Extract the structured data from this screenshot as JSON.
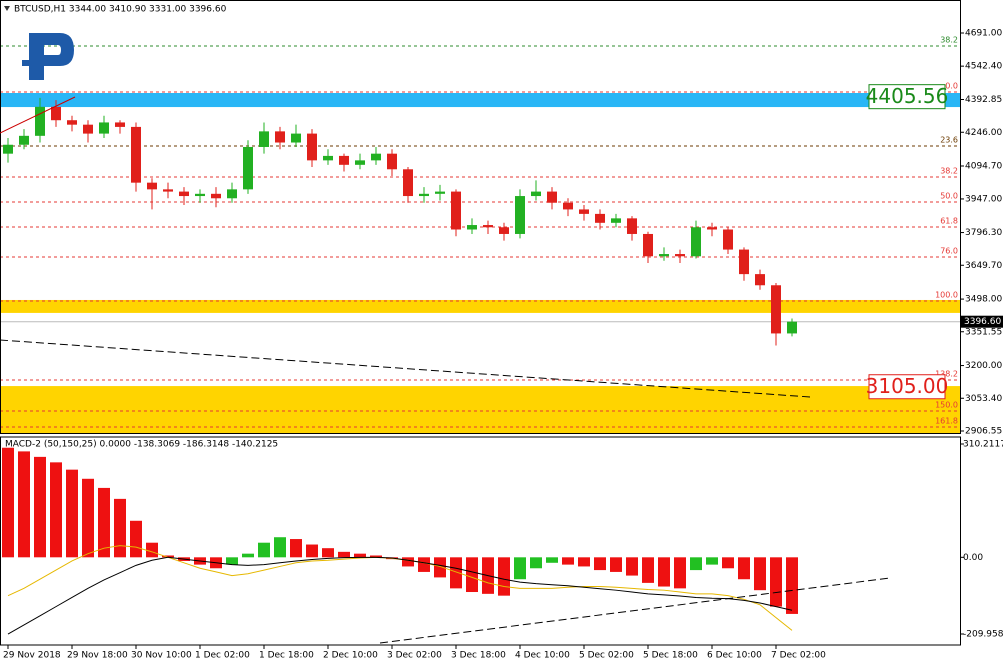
{
  "chart_data": [
    {
      "type": "candlestick",
      "title": "BTCUSD,H1  3344.00 3410.90 3331.00 3396.60",
      "categories": [
        "29 Nov 2018",
        null,
        null,
        null,
        "29 Nov 18:00",
        null,
        null,
        null,
        "30 Nov 10:00",
        null,
        null,
        null,
        "1 Dec 02:00",
        null,
        null,
        null,
        "1 Dec 18:00",
        null,
        null,
        null,
        "2 Dec 10:00",
        null,
        null,
        null,
        "3 Dec 02:00",
        null,
        null,
        null,
        "3 Dec 18:00",
        null,
        null,
        null,
        "4 Dec 10:00",
        null,
        null,
        null,
        "5 Dec 02:00",
        null,
        null,
        null,
        "5 Dec 18:00",
        null,
        null,
        null,
        "6 Dec 10:00",
        null,
        null,
        null,
        "7 Dec 02:00",
        null
      ],
      "open": [
        4150,
        4190,
        4230,
        4360,
        4300,
        4280,
        4240,
        4290,
        4270,
        4020,
        3990,
        3980,
        3960,
        3970,
        3950,
        3990,
        4180,
        4250,
        4200,
        4240,
        4120,
        4140,
        4100,
        4120,
        4150,
        4080,
        3960,
        3970,
        3980,
        3810,
        3830,
        3820,
        3790,
        3960,
        3980,
        3930,
        3900,
        3880,
        3840,
        3860,
        3790,
        3690,
        3700,
        3690,
        3820,
        3810,
        3720,
        3610,
        3560,
        3344
      ],
      "high": [
        4220,
        4260,
        4400,
        4390,
        4320,
        4300,
        4320,
        4300,
        4290,
        4040,
        4020,
        4000,
        3990,
        4000,
        4020,
        4210,
        4290,
        4270,
        4280,
        4260,
        4170,
        4150,
        4150,
        4180,
        4170,
        4090,
        4000,
        4010,
        3990,
        3860,
        3850,
        3840,
        3990,
        4030,
        4000,
        3950,
        3920,
        3900,
        3880,
        3870,
        3800,
        3730,
        3720,
        3850,
        3840,
        3820,
        3730,
        3630,
        3570,
        3410.9
      ],
      "low": [
        4110,
        4170,
        4200,
        4270,
        4250,
        4200,
        4220,
        4240,
        3980,
        3900,
        3950,
        3920,
        3930,
        3910,
        3930,
        3970,
        4150,
        4170,
        4180,
        4090,
        4100,
        4070,
        4080,
        4100,
        4050,
        3930,
        3930,
        3940,
        3780,
        3790,
        3790,
        3760,
        3770,
        3940,
        3900,
        3870,
        3850,
        3810,
        3820,
        3760,
        3660,
        3670,
        3660,
        3680,
        3780,
        3700,
        3580,
        3540,
        3290,
        3331
      ],
      "close": [
        4190,
        4230,
        4360,
        4300,
        4280,
        4240,
        4290,
        4270,
        4020,
        3990,
        3980,
        3960,
        3970,
        3950,
        3990,
        4180,
        4250,
        4200,
        4240,
        4120,
        4140,
        4100,
        4120,
        4150,
        4080,
        3960,
        3970,
        3980,
        3810,
        3830,
        3820,
        3790,
        3960,
        3980,
        3930,
        3900,
        3880,
        3840,
        3860,
        3790,
        3690,
        3700,
        3690,
        3820,
        3810,
        3720,
        3610,
        3560,
        3344,
        3396.6
      ],
      "up_color": "#22b022",
      "down_color": "#e0201b",
      "ylim": [
        2897.6,
        4839
      ],
      "yticks": [
        {
          "value": 4691,
          "label": "4691.00"
        },
        {
          "value": 4542.4,
          "label": "4542.40"
        },
        4392.85,
        {
          "value": 4246,
          "label": "4246.00"
        },
        {
          "value": 4094.7,
          "label": "4094.70"
        },
        {
          "value": 3947,
          "label": "3947.00"
        },
        {
          "value": 3796.3,
          "label": "3796.30"
        },
        {
          "value": 3649.7,
          "label": "3649.70"
        },
        {
          "value": 3498,
          "label": "3498.00"
        },
        3351.55,
        {
          "value": 3200,
          "label": "3200.00"
        },
        {
          "value": 3053.4,
          "label": "3053.40"
        },
        2906.55
      ],
      "bands": [
        {
          "from": 4359,
          "to": 4422,
          "color": "#29b6f6"
        },
        {
          "from": 3436,
          "to": 3494,
          "color": "#ffd400"
        },
        {
          "from": 2897.6,
          "to": 3108,
          "color": "#ffd400"
        }
      ],
      "levels": [
        {
          "price": 4632.7,
          "name": "38.2",
          "color": "#2e8b2e"
        },
        {
          "price": 4426.5,
          "name": "0.0",
          "color": "#e53935"
        },
        {
          "price": 4184.4,
          "name": "23.6",
          "color": "#6b3a00"
        },
        {
          "price": 4045.4,
          "name": "38.2",
          "color": "#e53935"
        },
        {
          "price": 3933.3,
          "name": "50.0",
          "color": "#e53935"
        },
        {
          "price": 3821.2,
          "name": "61.8",
          "color": "#e53935"
        },
        {
          "price": 3686.7,
          "name": "76.0",
          "color": "#e53935"
        },
        {
          "price": 3489.6,
          "name": "100.0",
          "color": "#e53935"
        },
        {
          "price": 3135.2,
          "name": "138.2",
          "color": "#e53935"
        },
        {
          "price": 2996.2,
          "name": "150.0",
          "color": "#e53935"
        },
        {
          "price": 2924.5,
          "name": "161.8",
          "color": "#e53935"
        }
      ],
      "price_labels": [
        {
          "value": 4405.56,
          "label": "4405.56",
          "color": "#1a8a1a"
        },
        {
          "value": 3105,
          "label": "3105.00",
          "color": "#e0201b"
        }
      ],
      "current_price": {
        "value": 3396.6,
        "label": "3396.60"
      }
    },
    {
      "type": "macd",
      "title": "MACD-2 (50,150,25) 0.0000 -138.3069 -186.3148 -140.2125",
      "ylim": [
        -240.07,
        329.4
      ],
      "yticks": [
        310.2117,
        {
          "value": 0,
          "label": "0.00"
        },
        {
          "value": -209.958,
          "label": "-209.9580"
        }
      ],
      "up_color": "#22c022",
      "down_color": "#ee1111",
      "series": [
        {
          "style": "histogram",
          "values": [
            300,
            290,
            275,
            260,
            240,
            215,
            190,
            160,
            100,
            40,
            5,
            -10,
            -20,
            -30,
            -20,
            10,
            40,
            55,
            50,
            35,
            25,
            15,
            10,
            5,
            -5,
            -25,
            -40,
            -55,
            -85,
            -95,
            -100,
            -105,
            -60,
            -30,
            -15,
            -20,
            -25,
            -35,
            -40,
            -50,
            -70,
            -80,
            -85,
            -35,
            -20,
            -30,
            -60,
            -90,
            -135,
            -155
          ]
        },
        {
          "style": "line",
          "color": "#e6b800",
          "values": [
            -105,
            -85,
            -60,
            -35,
            -10,
            10,
            25,
            32,
            28,
            15,
            0,
            -15,
            -30,
            -40,
            -50,
            -45,
            -35,
            -25,
            -15,
            -10,
            -8,
            -5,
            -2,
            0,
            -3,
            -8,
            -15,
            -25,
            -40,
            -55,
            -70,
            -80,
            -85,
            -85,
            -85,
            -82,
            -80,
            -80,
            -82,
            -85,
            -88,
            -90,
            -95,
            -100,
            -100,
            -105,
            -115,
            -130,
            -165,
            -200
          ]
        },
        {
          "style": "line",
          "color": "#000000",
          "values": [
            -210,
            -185,
            -160,
            -135,
            -110,
            -85,
            -62,
            -42,
            -22,
            -8,
            0,
            -5,
            -10,
            -15,
            -20,
            -22,
            -20,
            -15,
            -10,
            -6,
            -3,
            -1,
            0,
            0,
            -2,
            -8,
            -15,
            -22,
            -30,
            -40,
            -50,
            -60,
            -68,
            -72,
            -75,
            -78,
            -82,
            -86,
            -90,
            -95,
            -100,
            -103,
            -106,
            -110,
            -112,
            -113,
            -118,
            -125,
            -135,
            -145
          ]
        }
      ]
    }
  ]
}
